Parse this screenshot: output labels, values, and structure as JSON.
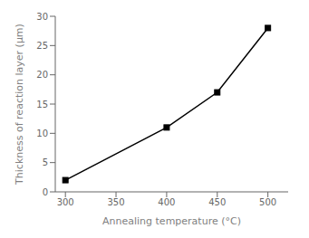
{
  "chart_data": {
    "type": "line",
    "x": [
      300,
      400,
      450,
      500
    ],
    "values": [
      2,
      11,
      17,
      28
    ],
    "color": "#000000",
    "marker": "square",
    "xlabel": "Annealing temperature (°C)",
    "ylabel": "Thickness of reaction layer (μm)",
    "xlim": [
      290,
      520
    ],
    "ylim": [
      0,
      30
    ],
    "xticks": [
      300,
      350,
      400,
      450,
      500
    ],
    "yticks": [
      0,
      5,
      10,
      15,
      20,
      25,
      30
    ],
    "grid": false
  }
}
